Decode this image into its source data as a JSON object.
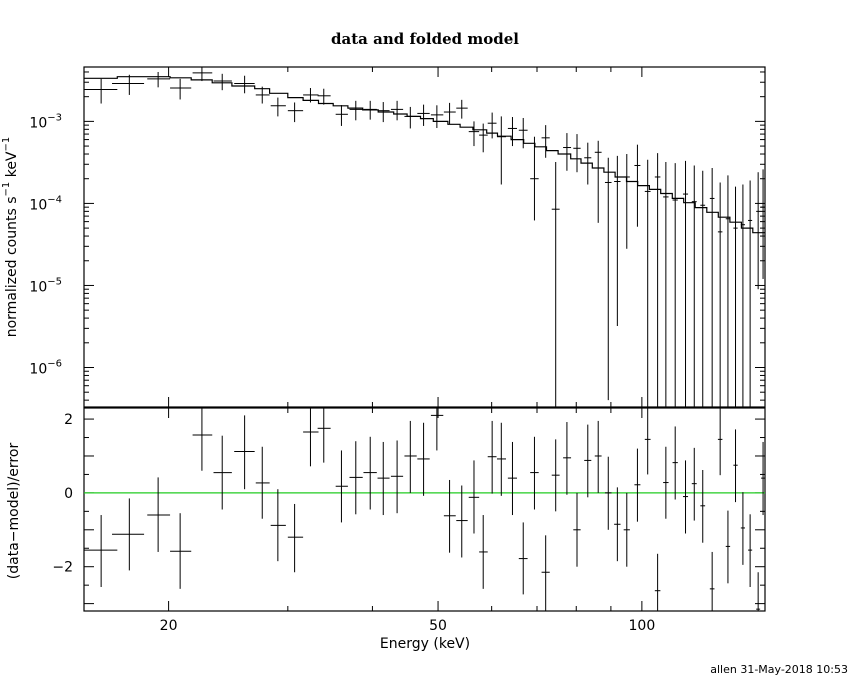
{
  "footer": "allen 31-May-2018 10:53",
  "chart_data": {
    "type": "scatter",
    "title": "data and folded model",
    "xlabel": "Energy (keV)",
    "ylabel_top": "normalized counts s⁻¹ keV⁻¹",
    "ylabel_top_parts": [
      "normalized counts s",
      "−1",
      " keV",
      "−1"
    ],
    "ylabel_bottom": "(data−model)/error",
    "x_scale": "log",
    "xlim": [
      15.0,
      152.0
    ],
    "x_tick_labels": [
      "20",
      "50",
      "100"
    ],
    "x_tick_values": [
      20,
      50,
      100
    ],
    "top_y_scale": "log",
    "top_ylim": [
      3.3e-07,
      0.0046
    ],
    "top_y_tick_labels": [
      {
        "base": "10",
        "exp": "−3",
        "value": 0.001
      },
      {
        "base": "10",
        "exp": "−4",
        "value": 0.0001
      },
      {
        "base": "10",
        "exp": "−5",
        "value": 1e-05
      },
      {
        "base": "10",
        "exp": "−6",
        "value": 1e-06
      }
    ],
    "bottom_ylim": [
      -3.2,
      2.3
    ],
    "bottom_y_tick_labels": [
      "2",
      "0",
      "−2"
    ],
    "bottom_y_tick_values": [
      2,
      0,
      -2
    ],
    "colors": {
      "axes": "#000000",
      "data": "#000000",
      "model": "#000000",
      "zero_line": "#22cc22"
    },
    "model": {
      "bin_edges": [
        15.0,
        16.8,
        18.3,
        20.1,
        21.6,
        23.2,
        24.8,
        26.8,
        28.2,
        30.0,
        31.6,
        33.3,
        35.0,
        36.8,
        38.7,
        40.8,
        43.0,
        45.0,
        47.1,
        49.2,
        51.7,
        53.9,
        56.3,
        59.0,
        61.2,
        64.1,
        66.9,
        69.5,
        72.3,
        75.2,
        78.5,
        81.3,
        84.5,
        87.9,
        91.3,
        94.9,
        98.6,
        102.6,
        106.6,
        110.9,
        115.3,
        119.9,
        124.7,
        129.7,
        134.9,
        140.3,
        145.8,
        152.0
      ],
      "values": [
        0.00335,
        0.0035,
        0.0035,
        0.0034,
        0.0032,
        0.00295,
        0.0027,
        0.0025,
        0.0022,
        0.00195,
        0.0018,
        0.00165,
        0.00155,
        0.00145,
        0.00138,
        0.0013,
        0.00123,
        0.00115,
        0.00108,
        0.001,
        0.00092,
        0.00085,
        0.00079,
        0.00072,
        0.00066,
        0.0006,
        0.00054,
        0.00049,
        0.00044,
        0.0004,
        0.00035,
        0.00031,
        0.00027,
        0.00024,
        0.00021,
        0.000185,
        0.000165,
        0.000148,
        0.000132,
        0.000115,
        0.000102,
        8.9e-05,
        7.8e-05,
        6.8e-05,
        5.9e-05,
        5e-05,
        4.4e-05
      ]
    },
    "data": [
      {
        "x": 15.9,
        "xlo": 15.0,
        "xhi": 16.8,
        "y": 0.00245,
        "ylo": 0.00165,
        "yhi": 0.0033
      },
      {
        "x": 17.5,
        "xlo": 16.5,
        "xhi": 18.4,
        "y": 0.0029,
        "ylo": 0.0021,
        "yhi": 0.0037
      },
      {
        "x": 19.3,
        "xlo": 18.6,
        "xhi": 20.1,
        "y": 0.0033,
        "ylo": 0.0026,
        "yhi": 0.004
      },
      {
        "x": 20.8,
        "xlo": 20.1,
        "xhi": 21.6,
        "y": 0.00255,
        "ylo": 0.00185,
        "yhi": 0.0033
      },
      {
        "x": 22.4,
        "xlo": 21.7,
        "xhi": 23.2,
        "y": 0.0039,
        "ylo": 0.0031,
        "yhi": 0.0046
      },
      {
        "x": 24.0,
        "xlo": 23.3,
        "xhi": 24.8,
        "y": 0.0031,
        "ylo": 0.0024,
        "yhi": 0.0038
      },
      {
        "x": 25.9,
        "xlo": 25.0,
        "xhi": 26.8,
        "y": 0.0029,
        "ylo": 0.0022,
        "yhi": 0.0036
      },
      {
        "x": 27.5,
        "xlo": 26.9,
        "xhi": 28.2,
        "y": 0.0021,
        "ylo": 0.00165,
        "yhi": 0.00265
      },
      {
        "x": 29.0,
        "xlo": 28.3,
        "xhi": 29.8,
        "y": 0.00155,
        "ylo": 0.00115,
        "yhi": 0.00195
      },
      {
        "x": 30.7,
        "xlo": 30.0,
        "xhi": 31.6,
        "y": 0.00135,
        "ylo": 0.00098,
        "yhi": 0.0017
      },
      {
        "x": 32.4,
        "xlo": 31.6,
        "xhi": 33.3,
        "y": 0.0021,
        "ylo": 0.0017,
        "yhi": 0.00255
      },
      {
        "x": 33.9,
        "xlo": 33.2,
        "xhi": 34.7,
        "y": 0.00205,
        "ylo": 0.0016,
        "yhi": 0.0025
      },
      {
        "x": 36.0,
        "xlo": 35.3,
        "xhi": 36.8,
        "y": 0.00122,
        "ylo": 0.00088,
        "yhi": 0.00158
      },
      {
        "x": 37.8,
        "xlo": 37.0,
        "xhi": 38.7,
        "y": 0.0014,
        "ylo": 0.00103,
        "yhi": 0.00178
      },
      {
        "x": 39.7,
        "xlo": 38.8,
        "xhi": 40.6,
        "y": 0.0014,
        "ylo": 0.00105,
        "yhi": 0.00178
      },
      {
        "x": 41.5,
        "xlo": 40.7,
        "xhi": 42.4,
        "y": 0.00135,
        "ylo": 0.00098,
        "yhi": 0.00172
      },
      {
        "x": 43.5,
        "xlo": 42.6,
        "xhi": 44.4,
        "y": 0.0014,
        "ylo": 0.00103,
        "yhi": 0.00178
      },
      {
        "x": 45.5,
        "xlo": 44.6,
        "xhi": 46.5,
        "y": 0.00115,
        "ylo": 0.00082,
        "yhi": 0.0015
      },
      {
        "x": 47.6,
        "xlo": 46.6,
        "xhi": 48.6,
        "y": 0.00125,
        "ylo": 0.00088,
        "yhi": 0.0016
      },
      {
        "x": 49.8,
        "xlo": 48.8,
        "xhi": 50.9,
        "y": 0.0012,
        "ylo": 0.00083,
        "yhi": 0.00157
      },
      {
        "x": 52.0,
        "xlo": 51.0,
        "xhi": 53.1,
        "y": 0.0013,
        "ylo": 0.00092,
        "yhi": 0.00168
      },
      {
        "x": 54.2,
        "xlo": 53.2,
        "xhi": 55.3,
        "y": 0.00145,
        "ylo": 0.00108,
        "yhi": 0.00183
      },
      {
        "x": 56.5,
        "xlo": 55.5,
        "xhi": 57.5,
        "y": 0.00075,
        "ylo": 0.0005,
        "yhi": 0.001
      },
      {
        "x": 58.3,
        "xlo": 57.5,
        "xhi": 59.2,
        "y": 0.00068,
        "ylo": 0.00042,
        "yhi": 0.00094
      },
      {
        "x": 60.1,
        "xlo": 59.2,
        "xhi": 61.0,
        "y": 0.00095,
        "ylo": 0.00062,
        "yhi": 0.00128
      },
      {
        "x": 62.0,
        "xlo": 61.1,
        "xhi": 63.0,
        "y": 0.00065,
        "ylo": 0.00017,
        "yhi": 0.00115
      },
      {
        "x": 64.4,
        "xlo": 63.4,
        "xhi": 65.4,
        "y": 0.00082,
        "ylo": 0.0005,
        "yhi": 0.00113
      },
      {
        "x": 66.8,
        "xlo": 65.8,
        "xhi": 67.8,
        "y": 0.00078,
        "ylo": 0.00047,
        "yhi": 0.0011
      },
      {
        "x": 69.4,
        "xlo": 68.4,
        "xhi": 70.4,
        "y": 0.0002,
        "ylo": 6.2e-05,
        "yhi": 0.00065
      },
      {
        "x": 72.1,
        "xlo": 71.1,
        "xhi": 73.1,
        "y": 0.00063,
        "ylo": 0.00036,
        "yhi": 0.0009
      },
      {
        "x": 74.6,
        "xlo": 73.6,
        "xhi": 75.6,
        "y": 8.5e-05,
        "ylo": 3.3e-07,
        "yhi": 0.00032
      },
      {
        "x": 77.5,
        "xlo": 76.5,
        "xhi": 78.6,
        "y": 0.00048,
        "ylo": 0.00025,
        "yhi": 0.00072
      },
      {
        "x": 80.2,
        "xlo": 79.2,
        "xhi": 81.2,
        "y": 0.00047,
        "ylo": 0.00024,
        "yhi": 0.0007
      },
      {
        "x": 83.2,
        "xlo": 82.2,
        "xhi": 84.2,
        "y": 0.00036,
        "ylo": 0.00017,
        "yhi": 0.00055
      },
      {
        "x": 86.2,
        "xlo": 85.2,
        "xhi": 87.2,
        "y": 0.00042,
        "ylo": 5.8e-05,
        "yhi": 0.00058
      },
      {
        "x": 89.2,
        "xlo": 88.2,
        "xhi": 90.2,
        "y": 0.00018,
        "ylo": 4e-07,
        "yhi": 0.00036
      },
      {
        "x": 92.0,
        "xlo": 91.0,
        "xhi": 93.0,
        "y": 0.000185,
        "ylo": 3.2e-06,
        "yhi": 0.00038
      },
      {
        "x": 95.0,
        "xlo": 94.0,
        "xhi": 96.0,
        "y": 0.00021,
        "ylo": 2.8e-05,
        "yhi": 0.0004
      },
      {
        "x": 98.5,
        "xlo": 97.5,
        "xhi": 99.5,
        "y": 0.00029,
        "ylo": 5.2e-05,
        "yhi": 0.00052
      },
      {
        "x": 102.0,
        "xlo": 101.0,
        "xhi": 103.0,
        "y": 0.00014,
        "ylo": 3.3e-07,
        "yhi": 0.00034
      },
      {
        "x": 105.5,
        "xlo": 104.5,
        "xhi": 106.5,
        "y": 0.00021,
        "ylo": 3.3e-07,
        "yhi": 0.00041
      },
      {
        "x": 108.5,
        "xlo": 107.5,
        "xhi": 109.5,
        "y": 0.00012,
        "ylo": 3.3e-07,
        "yhi": 0.00032
      },
      {
        "x": 112.0,
        "xlo": 111.0,
        "xhi": 113.0,
        "y": 0.00011,
        "ylo": 3.3e-07,
        "yhi": 0.00031
      },
      {
        "x": 116.0,
        "xlo": 115.0,
        "xhi": 117.0,
        "y": 0.00013,
        "ylo": 3.3e-07,
        "yhi": 0.00033
      },
      {
        "x": 119.5,
        "xlo": 118.5,
        "xhi": 120.5,
        "y": 0.000105,
        "ylo": 3.3e-07,
        "yhi": 0.00029
      },
      {
        "x": 123.0,
        "xlo": 122.0,
        "xhi": 124.0,
        "y": 9.5e-05,
        "ylo": 3.3e-07,
        "yhi": 0.00025
      },
      {
        "x": 127.0,
        "xlo": 126.0,
        "xhi": 128.0,
        "y": 0.000115,
        "ylo": 3.3e-07,
        "yhi": 0.00027
      },
      {
        "x": 130.5,
        "xlo": 129.5,
        "xhi": 131.5,
        "y": 4.5e-05,
        "ylo": 3.3e-07,
        "yhi": 0.00018
      },
      {
        "x": 134.0,
        "xlo": 133.0,
        "xhi": 135.0,
        "y": 6.5e-05,
        "ylo": 3.3e-07,
        "yhi": 0.00022
      },
      {
        "x": 137.5,
        "xlo": 136.5,
        "xhi": 138.5,
        "y": 5e-05,
        "ylo": 3.3e-07,
        "yhi": 0.00016
      },
      {
        "x": 141.0,
        "xlo": 140.0,
        "xhi": 142.0,
        "y": 5.5e-05,
        "ylo": 3.3e-07,
        "yhi": 0.00017
      },
      {
        "x": 144.5,
        "xlo": 143.5,
        "xhi": 145.5,
        "y": 6.2e-05,
        "ylo": 3.3e-07,
        "yhi": 0.00019
      },
      {
        "x": 148.5,
        "xlo": 147.5,
        "xhi": 149.5,
        "y": 8e-05,
        "ylo": 9e-06,
        "yhi": 0.00024
      },
      {
        "x": 151.0,
        "xlo": 150.0,
        "xhi": 152.0,
        "y": 9e-05,
        "ylo": 1.2e-05,
        "yhi": 0.00026
      }
    ],
    "residuals": [
      {
        "x": 15.9,
        "xlo": 15.0,
        "xhi": 16.8,
        "y": -1.55,
        "ylo": -2.55,
        "yhi": -0.6
      },
      {
        "x": 17.5,
        "xlo": 16.5,
        "xhi": 18.4,
        "y": -1.12,
        "ylo": -2.1,
        "yhi": -0.15
      },
      {
        "x": 19.3,
        "xlo": 18.6,
        "xhi": 20.1,
        "y": -0.6,
        "ylo": -1.6,
        "yhi": 0.42
      },
      {
        "x": 20.8,
        "xlo": 20.1,
        "xhi": 21.6,
        "y": -1.58,
        "ylo": -2.6,
        "yhi": -0.55
      },
      {
        "x": 22.4,
        "xlo": 21.7,
        "xhi": 23.2,
        "y": 1.57,
        "ylo": 0.6,
        "yhi": 2.3
      },
      {
        "x": 24.0,
        "xlo": 23.3,
        "xhi": 24.8,
        "y": 0.55,
        "ylo": -0.45,
        "yhi": 1.55
      },
      {
        "x": 25.9,
        "xlo": 25.0,
        "xhi": 26.8,
        "y": 1.12,
        "ylo": 0.1,
        "yhi": 2.1
      },
      {
        "x": 27.5,
        "xlo": 26.9,
        "xhi": 28.2,
        "y": 0.27,
        "ylo": -0.7,
        "yhi": 1.25
      },
      {
        "x": 29.0,
        "xlo": 28.3,
        "xhi": 29.8,
        "y": -0.88,
        "ylo": -1.85,
        "yhi": 0.1
      },
      {
        "x": 30.7,
        "xlo": 30.0,
        "xhi": 31.6,
        "y": -1.2,
        "ylo": -2.15,
        "yhi": -0.3
      },
      {
        "x": 32.4,
        "xlo": 31.6,
        "xhi": 33.3,
        "y": 1.65,
        "ylo": 0.72,
        "yhi": 2.3
      },
      {
        "x": 33.9,
        "xlo": 33.2,
        "xhi": 34.7,
        "y": 1.75,
        "ylo": 0.82,
        "yhi": 2.3
      },
      {
        "x": 36.0,
        "xlo": 35.3,
        "xhi": 36.8,
        "y": 0.18,
        "ylo": -0.8,
        "yhi": 1.15
      },
      {
        "x": 37.8,
        "xlo": 37.0,
        "xhi": 38.7,
        "y": 0.42,
        "ylo": -0.58,
        "yhi": 1.4
      },
      {
        "x": 39.7,
        "xlo": 38.8,
        "xhi": 40.6,
        "y": 0.55,
        "ylo": -0.45,
        "yhi": 1.52
      },
      {
        "x": 41.5,
        "xlo": 40.7,
        "xhi": 42.4,
        "y": 0.4,
        "ylo": -0.6,
        "yhi": 1.38
      },
      {
        "x": 43.5,
        "xlo": 42.6,
        "xhi": 44.4,
        "y": 0.45,
        "ylo": -0.55,
        "yhi": 1.42
      },
      {
        "x": 45.5,
        "xlo": 44.6,
        "xhi": 46.5,
        "y": 1.0,
        "ylo": 0.0,
        "yhi": 1.95
      },
      {
        "x": 47.6,
        "xlo": 46.6,
        "xhi": 48.6,
        "y": 0.92,
        "ylo": -0.08,
        "yhi": 1.9
      },
      {
        "x": 49.8,
        "xlo": 48.8,
        "xhi": 50.9,
        "y": 2.1,
        "ylo": 1.15,
        "yhi": 2.3
      },
      {
        "x": 52.0,
        "xlo": 51.0,
        "xhi": 53.1,
        "y": -0.62,
        "ylo": -1.62,
        "yhi": 0.35
      },
      {
        "x": 54.2,
        "xlo": 53.2,
        "xhi": 55.3,
        "y": -0.75,
        "ylo": -1.75,
        "yhi": 0.2
      },
      {
        "x": 56.5,
        "xlo": 55.5,
        "xhi": 57.5,
        "y": -0.12,
        "ylo": -1.1,
        "yhi": 0.88
      },
      {
        "x": 58.3,
        "xlo": 57.5,
        "xhi": 59.2,
        "y": -1.6,
        "ylo": -2.6,
        "yhi": -0.6
      },
      {
        "x": 60.1,
        "xlo": 59.2,
        "xhi": 61.0,
        "y": 0.98,
        "ylo": -0.02,
        "yhi": 1.95
      },
      {
        "x": 62.0,
        "xlo": 61.1,
        "xhi": 63.0,
        "y": 0.92,
        "ylo": -0.08,
        "yhi": 1.9
      },
      {
        "x": 64.4,
        "xlo": 63.4,
        "xhi": 65.4,
        "y": 0.4,
        "ylo": -0.6,
        "yhi": 1.38
      },
      {
        "x": 66.8,
        "xlo": 65.8,
        "xhi": 67.8,
        "y": -1.78,
        "ylo": -2.75,
        "yhi": -0.8
      },
      {
        "x": 69.4,
        "xlo": 68.4,
        "xhi": 70.4,
        "y": 0.55,
        "ylo": -0.45,
        "yhi": 1.52
      },
      {
        "x": 72.1,
        "xlo": 71.1,
        "xhi": 73.1,
        "y": -2.15,
        "ylo": -3.2,
        "yhi": -1.15
      },
      {
        "x": 74.6,
        "xlo": 73.6,
        "xhi": 75.6,
        "y": 0.48,
        "ylo": -0.5,
        "yhi": 1.45
      },
      {
        "x": 77.5,
        "xlo": 76.5,
        "xhi": 78.6,
        "y": 0.95,
        "ylo": -0.05,
        "yhi": 1.92
      },
      {
        "x": 80.2,
        "xlo": 79.2,
        "xhi": 81.2,
        "y": -1.0,
        "ylo": -2.0,
        "yhi": 0.0
      },
      {
        "x": 83.2,
        "xlo": 82.2,
        "xhi": 84.2,
        "y": 0.88,
        "ylo": -0.12,
        "yhi": 1.85
      },
      {
        "x": 86.2,
        "xlo": 85.2,
        "xhi": 87.2,
        "y": 1.0,
        "ylo": 0.0,
        "yhi": 1.95
      },
      {
        "x": 89.2,
        "xlo": 88.2,
        "xhi": 90.2,
        "y": 0.0,
        "ylo": -1.0,
        "yhi": 0.98
      },
      {
        "x": 92.0,
        "xlo": 91.0,
        "xhi": 93.0,
        "y": -0.85,
        "ylo": -1.85,
        "yhi": 0.15
      },
      {
        "x": 95.0,
        "xlo": 94.0,
        "xhi": 96.0,
        "y": -1.0,
        "ylo": -2.0,
        "yhi": 0.0
      },
      {
        "x": 98.5,
        "xlo": 97.5,
        "xhi": 99.5,
        "y": 0.22,
        "ylo": -0.78,
        "yhi": 1.2
      },
      {
        "x": 102.0,
        "xlo": 101.0,
        "xhi": 103.0,
        "y": 1.45,
        "ylo": 0.5,
        "yhi": 2.3
      },
      {
        "x": 105.5,
        "xlo": 104.5,
        "xhi": 106.5,
        "y": -2.65,
        "ylo": -3.2,
        "yhi": -1.65
      },
      {
        "x": 108.5,
        "xlo": 107.5,
        "xhi": 109.5,
        "y": 0.28,
        "ylo": -0.7,
        "yhi": 1.25
      },
      {
        "x": 112.0,
        "xlo": 111.0,
        "xhi": 113.0,
        "y": 0.82,
        "ylo": -0.18,
        "yhi": 1.8
      },
      {
        "x": 116.0,
        "xlo": 115.0,
        "xhi": 117.0,
        "y": -0.1,
        "ylo": -1.1,
        "yhi": 0.88
      },
      {
        "x": 119.5,
        "xlo": 118.5,
        "xhi": 120.5,
        "y": 0.25,
        "ylo": -0.75,
        "yhi": 1.22
      },
      {
        "x": 123.0,
        "xlo": 122.0,
        "xhi": 124.0,
        "y": -0.35,
        "ylo": -1.35,
        "yhi": 0.62
      },
      {
        "x": 127.0,
        "xlo": 126.0,
        "xhi": 128.0,
        "y": -2.6,
        "ylo": -3.2,
        "yhi": -1.6
      },
      {
        "x": 130.5,
        "xlo": 129.5,
        "xhi": 131.5,
        "y": 1.45,
        "ylo": 0.48,
        "yhi": 2.3
      },
      {
        "x": 134.0,
        "xlo": 133.0,
        "xhi": 135.0,
        "y": -1.45,
        "ylo": -2.45,
        "yhi": -0.48
      },
      {
        "x": 137.5,
        "xlo": 136.5,
        "xhi": 138.5,
        "y": 0.75,
        "ylo": -0.25,
        "yhi": 1.72
      },
      {
        "x": 141.0,
        "xlo": 140.0,
        "xhi": 142.0,
        "y": -0.95,
        "ylo": -1.95,
        "yhi": 0.02
      },
      {
        "x": 144.5,
        "xlo": 143.5,
        "xhi": 145.5,
        "y": -1.55,
        "ylo": -2.55,
        "yhi": -0.58
      },
      {
        "x": 148.5,
        "xlo": 147.5,
        "xhi": 149.5,
        "y": -3.15,
        "ylo": -3.2,
        "yhi": -2.15
      },
      {
        "x": 151.0,
        "xlo": 150.0,
        "xhi": 152.0,
        "y": 0.4,
        "ylo": -0.6,
        "yhi": 1.38
      }
    ]
  }
}
